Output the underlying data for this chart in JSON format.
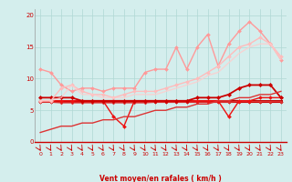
{
  "xlabel": "Vent moyen/en rafales ( km/h )",
  "bg_color": "#d4eeed",
  "grid_color": "#b0d8d4",
  "x_ticks": [
    0,
    1,
    2,
    3,
    4,
    5,
    6,
    7,
    8,
    9,
    10,
    11,
    12,
    13,
    14,
    15,
    16,
    17,
    18,
    19,
    20,
    21,
    22,
    23
  ],
  "xlim": [
    -0.5,
    23.5
  ],
  "ylim": [
    0,
    21
  ],
  "yticks": [
    0,
    5,
    10,
    15,
    20
  ],
  "series": [
    {
      "x": [
        0,
        1,
        2,
        3,
        4,
        5,
        6,
        7,
        8,
        9,
        10,
        11,
        12,
        13,
        14,
        15,
        16,
        17,
        18,
        19,
        20,
        21,
        22,
        23
      ],
      "y": [
        6.5,
        6.5,
        6.5,
        6.5,
        6.5,
        6.5,
        6.5,
        6.5,
        6.5,
        6.5,
        6.5,
        6.5,
        6.5,
        6.5,
        6.5,
        6.5,
        6.5,
        6.5,
        6.5,
        6.5,
        6.5,
        6.5,
        6.5,
        6.5
      ],
      "color": "#bb0000",
      "lw": 2.2,
      "marker": null,
      "alpha": 1.0
    },
    {
      "x": [
        0,
        1,
        2,
        3,
        4,
        5,
        6,
        7,
        8,
        9,
        10,
        11,
        12,
        13,
        14,
        15,
        16,
        17,
        18,
        19,
        20,
        21,
        22,
        23
      ],
      "y": [
        6.4,
        6.4,
        6.3,
        6.3,
        6.3,
        6.3,
        6.3,
        6.3,
        6.3,
        6.3,
        6.3,
        6.3,
        6.3,
        6.3,
        6.3,
        6.3,
        6.3,
        6.3,
        6.3,
        6.3,
        6.3,
        6.3,
        6.3,
        6.3
      ],
      "color": "#cc0000",
      "lw": 1.2,
      "marker": "D",
      "markersize": 1.8,
      "alpha": 1.0
    },
    {
      "x": [
        0,
        1,
        2,
        3,
        4,
        5,
        6,
        7,
        8,
        9,
        10,
        11,
        12,
        13,
        14,
        15,
        16,
        17,
        18,
        19,
        20,
        21,
        22,
        23
      ],
      "y": [
        6.3,
        6.3,
        6.2,
        6.2,
        6.2,
        6.2,
        6.2,
        6.2,
        6.2,
        6.2,
        6.2,
        6.3,
        6.3,
        6.3,
        6.3,
        6.3,
        6.3,
        6.3,
        6.3,
        6.4,
        6.4,
        6.4,
        6.4,
        6.4
      ],
      "color": "#dd3333",
      "lw": 1.0,
      "marker": "D",
      "markersize": 1.5,
      "alpha": 1.0
    },
    {
      "x": [
        0,
        1,
        2,
        3,
        4,
        5,
        6,
        7,
        8,
        9,
        10,
        11,
        12,
        13,
        14,
        15,
        16,
        17,
        18,
        19,
        20,
        21,
        22,
        23
      ],
      "y": [
        6.5,
        6.5,
        6.5,
        6.5,
        6.5,
        6.5,
        6.5,
        4.0,
        2.5,
        6.5,
        6.5,
        6.5,
        6.5,
        6.5,
        6.5,
        6.5,
        6.5,
        6.5,
        4.0,
        6.5,
        6.5,
        7.0,
        7.0,
        7.0
      ],
      "color": "#ee1111",
      "lw": 1.0,
      "marker": "D",
      "markersize": 2.0,
      "alpha": 1.0
    },
    {
      "x": [
        0,
        1,
        2,
        3,
        4,
        5,
        6,
        7,
        8,
        9,
        10,
        11,
        12,
        13,
        14,
        15,
        16,
        17,
        18,
        19,
        20,
        21,
        22,
        23
      ],
      "y": [
        7.0,
        7.0,
        7.0,
        7.0,
        6.5,
        6.5,
        6.5,
        6.5,
        6.5,
        6.5,
        6.5,
        6.5,
        6.5,
        6.5,
        6.5,
        7.0,
        7.0,
        7.0,
        7.5,
        8.5,
        9.0,
        9.0,
        9.0,
        7.0
      ],
      "color": "#cc0000",
      "lw": 1.3,
      "marker": "D",
      "markersize": 2.2,
      "alpha": 1.0
    },
    {
      "x": [
        0,
        1,
        2,
        3,
        4,
        5,
        6,
        7,
        8,
        9,
        10,
        11,
        12,
        13,
        14,
        15,
        16,
        17,
        18,
        19,
        20,
        21,
        22,
        23
      ],
      "y": [
        1.5,
        2.0,
        2.5,
        2.5,
        3.0,
        3.0,
        3.5,
        3.5,
        4.0,
        4.0,
        4.5,
        5.0,
        5.0,
        5.5,
        5.5,
        6.0,
        6.0,
        6.5,
        6.5,
        7.0,
        7.0,
        7.5,
        7.5,
        8.0
      ],
      "color": "#dd3333",
      "lw": 1.0,
      "marker": null,
      "alpha": 1.0
    },
    {
      "x": [
        0,
        1,
        2,
        3,
        4,
        5,
        6,
        7,
        8,
        9,
        10,
        11,
        12,
        13,
        14,
        15,
        16,
        17,
        18,
        19,
        20,
        21,
        22,
        23
      ],
      "y": [
        11.5,
        11.0,
        9.0,
        8.0,
        8.5,
        8.5,
        8.0,
        8.5,
        8.5,
        8.5,
        11.0,
        11.5,
        11.5,
        15.0,
        11.5,
        15.0,
        17.0,
        12.0,
        15.5,
        17.5,
        19.0,
        17.5,
        15.5,
        13.0
      ],
      "color": "#ff9999",
      "lw": 1.0,
      "marker": "D",
      "markersize": 2.0,
      "alpha": 1.0
    },
    {
      "x": [
        0,
        1,
        2,
        3,
        4,
        5,
        6,
        7,
        8,
        9,
        10,
        11,
        12,
        13,
        14,
        15,
        16,
        17,
        18,
        19,
        20,
        21,
        22,
        23
      ],
      "y": [
        6.5,
        6.5,
        8.5,
        9.0,
        8.0,
        7.5,
        7.5,
        7.0,
        7.5,
        8.0,
        8.0,
        8.0,
        8.5,
        9.0,
        9.5,
        10.0,
        11.0,
        12.0,
        13.5,
        15.0,
        15.5,
        16.5,
        15.5,
        13.5
      ],
      "color": "#ffbbbb",
      "lw": 1.0,
      "marker": "D",
      "markersize": 2.0,
      "alpha": 1.0
    },
    {
      "x": [
        0,
        1,
        2,
        3,
        4,
        5,
        6,
        7,
        8,
        9,
        10,
        11,
        12,
        13,
        14,
        15,
        16,
        17,
        18,
        19,
        20,
        21,
        22,
        23
      ],
      "y": [
        6.5,
        6.5,
        7.0,
        9.0,
        7.5,
        7.5,
        7.0,
        7.0,
        7.0,
        7.5,
        7.5,
        7.5,
        8.0,
        8.5,
        9.0,
        9.5,
        10.5,
        11.0,
        12.5,
        14.0,
        15.0,
        15.5,
        15.5,
        13.0
      ],
      "color": "#ffcccc",
      "lw": 1.0,
      "marker": null,
      "alpha": 0.8
    }
  ],
  "arrow_color": "#cc0000"
}
